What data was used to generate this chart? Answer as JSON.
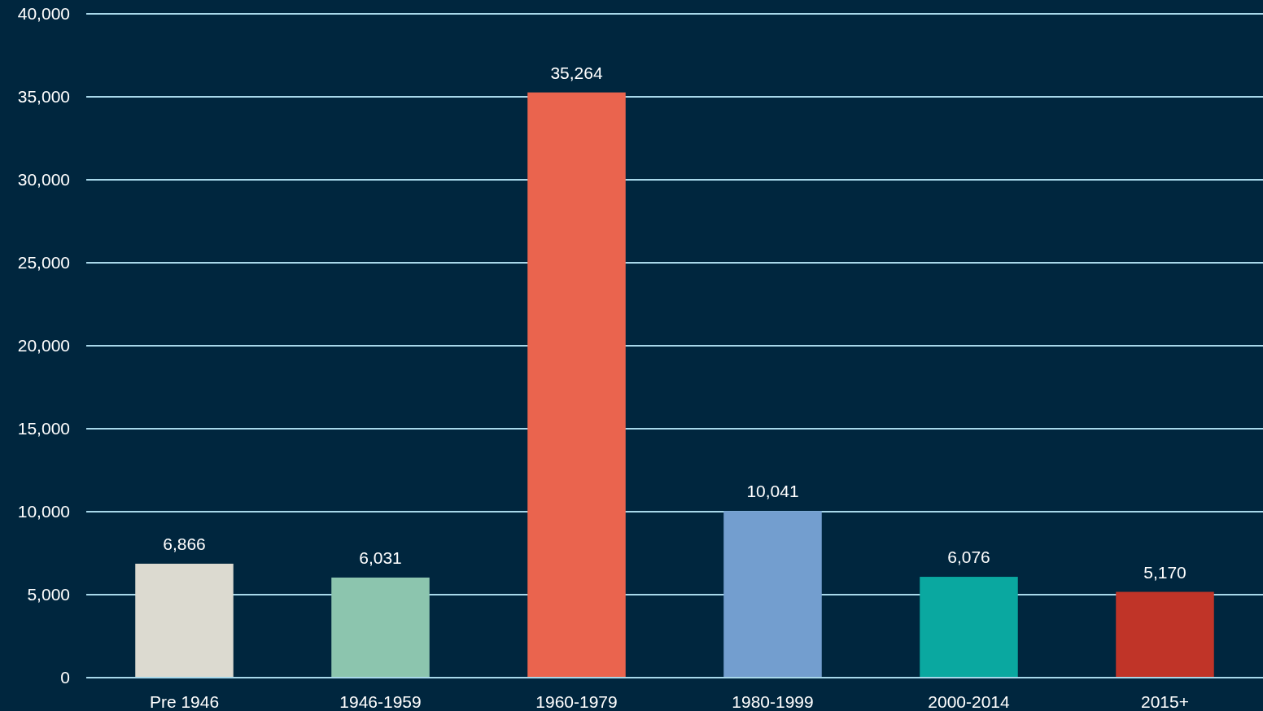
{
  "chart_data": {
    "type": "bar",
    "categories": [
      "Pre 1946",
      "1946-1959",
      "1960-1979",
      "1980-1999",
      "2000-2014",
      "2015+"
    ],
    "values": [
      6866,
      6031,
      35264,
      10041,
      6076,
      5170
    ],
    "colors": [
      "#dcdad0",
      "#8cc5ae",
      "#ea644e",
      "#739ecf",
      "#0aa8a0",
      "#c03428"
    ],
    "ylim": [
      0,
      40000
    ],
    "yticks": [
      {
        "value": 0,
        "label": "0"
      },
      {
        "value": 5000,
        "label": "5,000"
      },
      {
        "value": 10000,
        "label": "10,000"
      },
      {
        "value": 15000,
        "label": "15,000"
      },
      {
        "value": 20000,
        "label": "20,000"
      },
      {
        "value": 25000,
        "label": "25,000"
      },
      {
        "value": 30000,
        "label": "30,000"
      },
      {
        "value": 35000,
        "label": "35,000"
      },
      {
        "value": 40000,
        "label": "40,000"
      }
    ],
    "value_labels": [
      "6,866",
      "6,031",
      "35,264",
      "10,041",
      "6,076",
      "5,170"
    ],
    "grid": "y"
  }
}
